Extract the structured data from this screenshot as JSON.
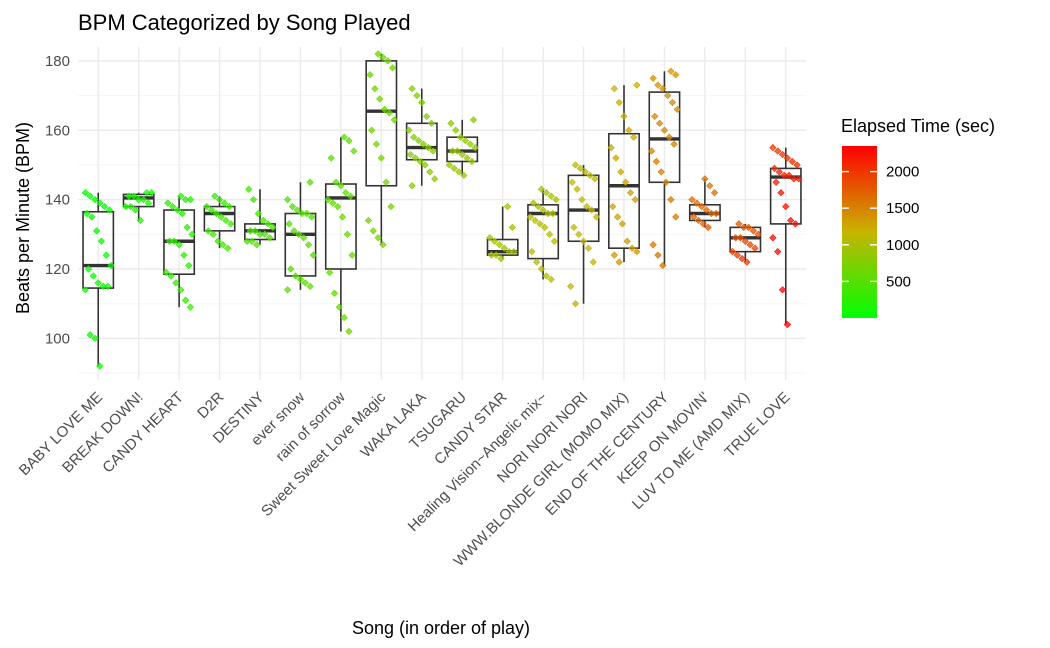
{
  "chart_data": {
    "type": "box",
    "title": "BPM Categorized by Song Played",
    "xlabel": "Song (in order of play)",
    "ylabel": "Beats per Minute (BPM)",
    "ylim": [
      88,
      184
    ],
    "yticks": [
      100,
      120,
      140,
      160,
      180
    ],
    "grid": true,
    "legend": {
      "title": "Elapsed Time (sec)",
      "placement": "right",
      "ticks": [
        500,
        1000,
        1500,
        2000
      ],
      "range": [
        0,
        2350
      ],
      "low_color": "#00ff00",
      "mid_color": "#c8b400",
      "high_color": "#ff0000"
    },
    "colors": {
      "box_stroke": "#333333",
      "grid_major": "#ebebeb",
      "grid_minor": "#f5f5f5"
    },
    "categories": [
      "BABY LOVE ME",
      "BREAK DOWN!",
      "CANDY HEART",
      "D2R",
      "DESTINY",
      "ever snow",
      "rain of sorrow",
      "Sweet Sweet Love Magic",
      "WAKA LAKA",
      "TSUGARU",
      "CANDY STAR",
      "Healing Vision~Angelic mix~",
      "NORI NORI NORI",
      "WWW.BLONDE GIRL (MOMO MIX)",
      "END OF THE CENTURY",
      "KEEP ON MOVIN'",
      "LUV TO ME (AMD MIX)",
      "TRUE LOVE"
    ],
    "boxes": [
      {
        "min": 92,
        "q1": 114.5,
        "median": 121,
        "q3": 136.5,
        "max": 142,
        "time": [
          0,
          100
        ],
        "points": [
          142,
          141,
          140,
          139,
          138,
          137,
          136,
          135,
          131,
          128,
          124,
          121,
          120,
          118,
          116,
          115,
          115,
          114,
          101,
          100,
          92
        ]
      },
      {
        "min": 134,
        "q1": 138,
        "median": 140.5,
        "q3": 141.5,
        "max": 142,
        "time": [
          100,
          200
        ],
        "points": [
          142,
          142,
          141,
          141,
          140,
          140,
          139,
          138,
          138,
          137,
          134
        ]
      },
      {
        "min": 109,
        "q1": 118.5,
        "median": 128,
        "q3": 137,
        "max": 141,
        "time": [
          200,
          300
        ],
        "points": [
          141,
          140,
          140,
          139,
          138,
          137,
          136,
          132,
          130,
          128,
          128,
          127,
          124,
          121,
          119,
          118,
          116,
          114,
          111,
          109
        ]
      },
      {
        "min": 126,
        "q1": 131,
        "median": 136,
        "q3": 138,
        "max": 141,
        "time": [
          300,
          380
        ],
        "points": [
          141,
          140,
          139,
          138,
          138,
          137,
          136,
          135,
          134,
          133,
          131,
          130,
          128,
          127,
          126
        ]
      },
      {
        "min": 127,
        "q1": 128.5,
        "median": 131,
        "q3": 133,
        "max": 143,
        "time": [
          380,
          460
        ],
        "points": [
          143,
          140,
          136,
          134,
          133,
          132,
          131,
          131,
          130,
          130,
          129,
          128,
          128,
          127
        ]
      },
      {
        "min": 114,
        "q1": 118,
        "median": 130,
        "q3": 136,
        "max": 145,
        "time": [
          460,
          540
        ],
        "points": [
          145,
          140,
          138,
          137,
          136,
          136,
          135,
          133,
          131,
          130,
          129,
          127,
          124,
          120,
          118,
          117,
          116,
          115,
          114
        ]
      },
      {
        "min": 102,
        "q1": 120,
        "median": 140.5,
        "q3": 144.5,
        "max": 158,
        "time": [
          540,
          620
        ],
        "points": [
          158,
          157,
          154,
          152,
          145,
          144,
          142,
          141,
          140,
          139,
          138,
          135,
          130,
          124,
          119,
          113,
          109,
          106,
          102
        ]
      },
      {
        "min": 127,
        "q1": 144,
        "median": 165.5,
        "q3": 180,
        "max": 182,
        "time": [
          620,
          720
        ],
        "points": [
          182,
          181,
          180,
          178,
          176,
          172,
          169,
          166,
          165,
          163,
          160,
          156,
          152,
          145,
          138,
          134,
          131,
          129,
          127
        ]
      },
      {
        "min": 144,
        "q1": 151.5,
        "median": 155,
        "q3": 162,
        "max": 172,
        "time": [
          720,
          810
        ],
        "points": [
          172,
          170,
          168,
          164,
          162,
          160,
          158,
          157,
          156,
          155,
          154,
          153,
          152,
          151,
          150,
          148,
          146,
          144
        ]
      },
      {
        "min": 147,
        "q1": 151,
        "median": 154,
        "q3": 158,
        "max": 163,
        "time": [
          810,
          900
        ],
        "points": [
          163,
          162,
          160,
          158,
          157,
          156,
          155,
          154,
          154,
          153,
          152,
          151,
          150,
          149,
          148,
          147
        ]
      },
      {
        "min": 123,
        "q1": 124,
        "median": 125,
        "q3": 128.5,
        "max": 138,
        "time": [
          900,
          980
        ],
        "points": [
          138,
          132,
          129,
          128,
          127,
          126,
          125,
          125,
          124,
          124,
          123
        ]
      },
      {
        "min": 117,
        "q1": 123,
        "median": 136,
        "q3": 138.5,
        "max": 143,
        "time": [
          980,
          1080
        ],
        "points": [
          143,
          142,
          141,
          140,
          139,
          138,
          137,
          136,
          136,
          135,
          134,
          133,
          132,
          130,
          128,
          125,
          122,
          120,
          118,
          117
        ]
      },
      {
        "min": 110,
        "q1": 128,
        "median": 137,
        "q3": 147,
        "max": 150,
        "time": [
          1080,
          1200
        ],
        "points": [
          150,
          149,
          148,
          147,
          146,
          145,
          143,
          140,
          138,
          137,
          135,
          132,
          130,
          128,
          126,
          122,
          115,
          110
        ]
      },
      {
        "min": 122,
        "q1": 126,
        "median": 144,
        "q3": 159,
        "max": 173,
        "time": [
          1200,
          1380
        ],
        "points": [
          173,
          172,
          168,
          164,
          160,
          158,
          155,
          152,
          148,
          145,
          142,
          140,
          138,
          135,
          133,
          128,
          126,
          125,
          124,
          122
        ]
      },
      {
        "min": 121,
        "q1": 145,
        "median": 157.5,
        "q3": 171,
        "max": 177,
        "time": [
          1380,
          1600
        ],
        "points": [
          177,
          176,
          175,
          173,
          172,
          170,
          168,
          166,
          164,
          162,
          160,
          158,
          156,
          154,
          151,
          148,
          145,
          140,
          135,
          127,
          124,
          121
        ]
      },
      {
        "min": 132,
        "q1": 134,
        "median": 136,
        "q3": 138.5,
        "max": 146,
        "time": [
          1600,
          1760
        ],
        "points": [
          146,
          144,
          142,
          140,
          139,
          138,
          137,
          136,
          136,
          135,
          134,
          133,
          132
        ]
      },
      {
        "min": 122,
        "q1": 125,
        "median": 129,
        "q3": 132,
        "max": 133,
        "time": [
          1760,
          1980
        ],
        "points": [
          133,
          132,
          132,
          131,
          130,
          129,
          129,
          128,
          127,
          126,
          125,
          124,
          123,
          122
        ]
      },
      {
        "min": 104,
        "q1": 133,
        "median": 146.5,
        "q3": 149,
        "max": 155,
        "time": [
          1980,
          2330
        ],
        "points": [
          155,
          154,
          153,
          152,
          151,
          150,
          149,
          148,
          147,
          147,
          146,
          146,
          145,
          142,
          138,
          134,
          133,
          129,
          125,
          114,
          104
        ]
      }
    ]
  }
}
